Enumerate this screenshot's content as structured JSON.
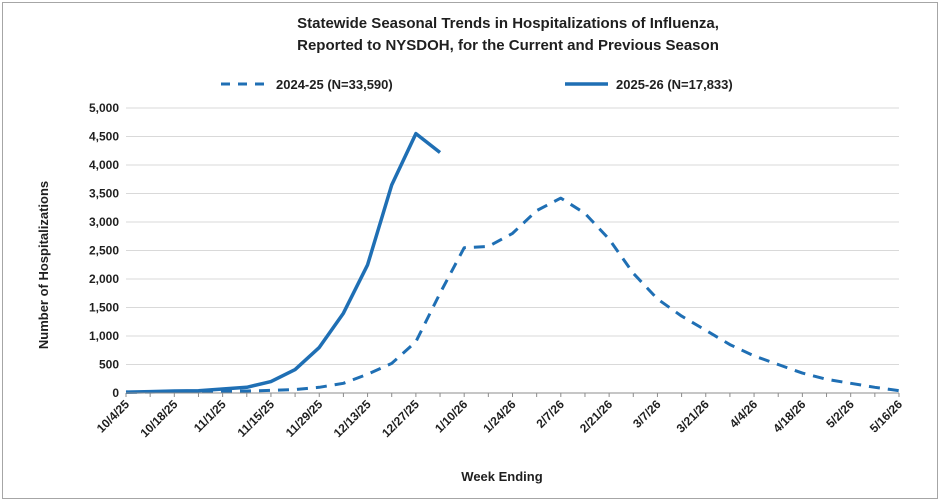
{
  "chart_data": {
    "type": "line",
    "title_lines": [
      "Statewide Seasonal Trends in Hospitalizations of Influenza,",
      "Reported to NYSDOH, for the Current and Previous Season"
    ],
    "xlabel": "Week Ending",
    "ylabel": "Number of Hospitalizations",
    "ylim": [
      0,
      5000
    ],
    "y_ticks": [
      0,
      500,
      1000,
      1500,
      2000,
      2500,
      3000,
      3500,
      4000,
      4500,
      5000
    ],
    "y_tick_labels": [
      "0",
      "500",
      "1,000",
      "1,500",
      "2,000",
      "2,500",
      "3,000",
      "3,500",
      "4,000",
      "4,500",
      "5,000"
    ],
    "x_tick_labels": [
      "10/4/25",
      "10/18/25",
      "11/1/25",
      "11/15/25",
      "11/29/25",
      "12/13/25",
      "12/27/25",
      "1/10/26",
      "1/24/26",
      "2/7/26",
      "2/21/26",
      "3/7/26",
      "3/21/26",
      "4/4/26",
      "4/18/26",
      "5/2/26",
      "5/16/26"
    ],
    "week_count": 33,
    "grid": true,
    "legend_position": "top",
    "series": [
      {
        "name": "2024-25 (N=33,590)",
        "style": "dashed",
        "color": "#1f6fb4",
        "values": [
          10,
          15,
          20,
          25,
          30,
          35,
          45,
          60,
          100,
          170,
          330,
          520,
          900,
          1750,
          2550,
          2570,
          2800,
          3200,
          3420,
          3150,
          2700,
          2100,
          1650,
          1350,
          1100,
          850,
          650,
          500,
          350,
          240,
          170,
          100,
          40
        ]
      },
      {
        "name": "2025-26 (N=17,833)",
        "style": "solid",
        "color": "#1f6fb4",
        "values": [
          15,
          25,
          35,
          40,
          70,
          100,
          200,
          410,
          800,
          1400,
          2250,
          3650,
          4550,
          4220
        ]
      }
    ]
  }
}
